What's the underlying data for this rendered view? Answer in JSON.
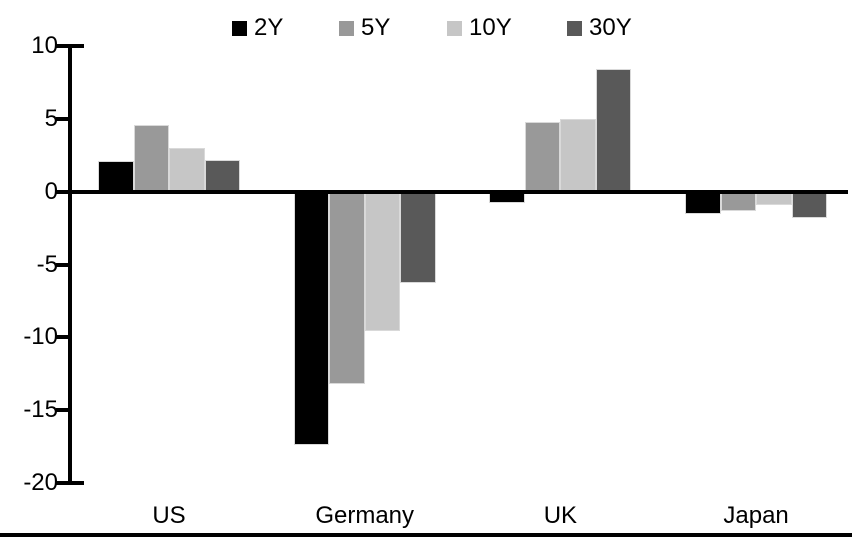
{
  "chart_data": {
    "type": "bar",
    "title": "",
    "xlabel": "",
    "ylabel": "",
    "categories": [
      "US",
      "Germany",
      "UK",
      "Japan"
    ],
    "series": [
      {
        "name": "2Y",
        "color": "#000000",
        "values": [
          2.1,
          -17.4,
          -0.8,
          -1.5
        ]
      },
      {
        "name": "5Y",
        "color": "#999999",
        "values": [
          4.6,
          -13.2,
          4.8,
          -1.3
        ]
      },
      {
        "name": "10Y",
        "color": "#c6c6c6",
        "values": [
          3.0,
          -9.6,
          5.0,
          -0.9
        ]
      },
      {
        "name": "30Y",
        "color": "#595959",
        "values": [
          2.2,
          -6.3,
          8.4,
          -1.8
        ]
      }
    ],
    "ylim": [
      -20,
      10
    ],
    "yticks": [
      10,
      5,
      0,
      -5,
      -10,
      -15,
      -20
    ],
    "grid": false,
    "legend_position": "top",
    "axis_color": "#000000",
    "background_color": "#ffffff"
  }
}
